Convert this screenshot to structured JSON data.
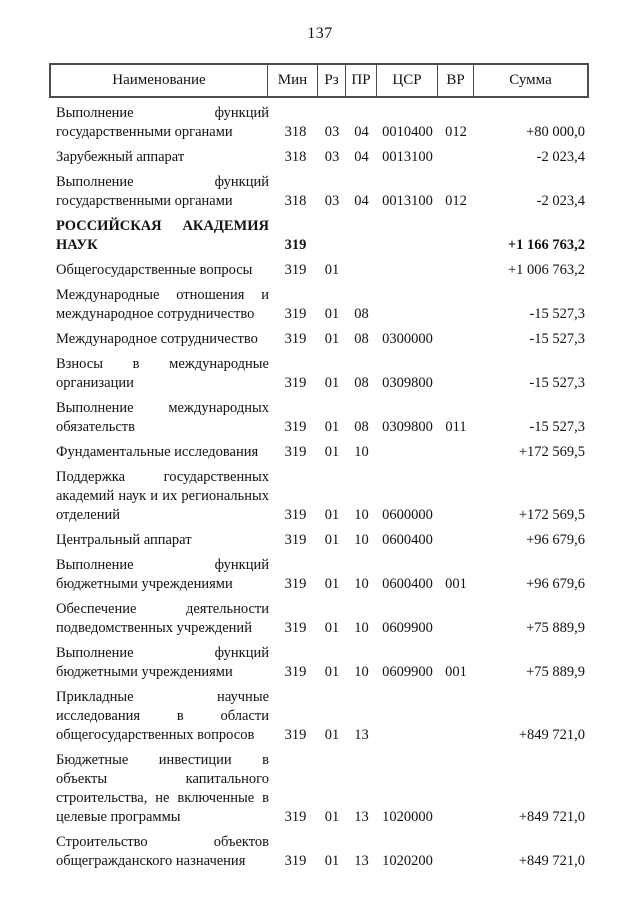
{
  "page": {
    "number": "137"
  },
  "colors": {
    "ink": "#121212",
    "table_border": "#4d4d4d",
    "paper": "#ffffff"
  },
  "table": {
    "headers": [
      "Наименование",
      "Мин",
      "Рз",
      "ПР",
      "ЦСР",
      "ВР",
      "Сумма"
    ],
    "rows": [
      {
        "name": "Выполнение функций государственными органами",
        "min": "318",
        "rz": "03",
        "pr": "04",
        "csr": "0010400",
        "vr": "012",
        "sum": "+80 000,0",
        "bold": false
      },
      {
        "name": "Зарубежный аппарат",
        "min": "318",
        "rz": "03",
        "pr": "04",
        "csr": "0013100",
        "vr": "",
        "sum": "-2 023,4",
        "bold": false
      },
      {
        "name": "Выполнение функций государственными органами",
        "min": "318",
        "rz": "03",
        "pr": "04",
        "csr": "0013100",
        "vr": "012",
        "sum": "-2 023,4",
        "bold": false
      },
      {
        "name": "РОССИЙСКАЯ АКАДЕМИЯ НАУК",
        "min": "319",
        "rz": "",
        "pr": "",
        "csr": "",
        "vr": "",
        "sum": "+1 166 763,2",
        "bold": true
      },
      {
        "name": "Общегосударственные вопросы",
        "min": "319",
        "rz": "01",
        "pr": "",
        "csr": "",
        "vr": "",
        "sum": "+1 006 763,2",
        "bold": false
      },
      {
        "name": "Международные отношения и международное сотрудничество",
        "min": "319",
        "rz": "01",
        "pr": "08",
        "csr": "",
        "vr": "",
        "sum": "-15 527,3",
        "bold": false
      },
      {
        "name": "Международное сотрудничество",
        "min": "319",
        "rz": "01",
        "pr": "08",
        "csr": "0300000",
        "vr": "",
        "sum": "-15 527,3",
        "bold": false
      },
      {
        "name": "Взносы в международные организации",
        "min": "319",
        "rz": "01",
        "pr": "08",
        "csr": "0309800",
        "vr": "",
        "sum": "-15 527,3",
        "bold": false
      },
      {
        "name": "Выполнение международных обязательств",
        "min": "319",
        "rz": "01",
        "pr": "08",
        "csr": "0309800",
        "vr": "011",
        "sum": "-15 527,3",
        "bold": false
      },
      {
        "name": "Фундаментальные исследования",
        "min": "319",
        "rz": "01",
        "pr": "10",
        "csr": "",
        "vr": "",
        "sum": "+172 569,5",
        "bold": false
      },
      {
        "name": "Поддержка государственных академий наук и их региональных отделений",
        "min": "319",
        "rz": "01",
        "pr": "10",
        "csr": "0600000",
        "vr": "",
        "sum": "+172 569,5",
        "bold": false
      },
      {
        "name": "Центральный аппарат",
        "min": "319",
        "rz": "01",
        "pr": "10",
        "csr": "0600400",
        "vr": "",
        "sum": "+96 679,6",
        "bold": false
      },
      {
        "name": "Выполнение функций бюджетными учреждениями",
        "min": "319",
        "rz": "01",
        "pr": "10",
        "csr": "0600400",
        "vr": "001",
        "sum": "+96 679,6",
        "bold": false
      },
      {
        "name": "Обеспечение деятельности подведомственных учреждений",
        "min": "319",
        "rz": "01",
        "pr": "10",
        "csr": "0609900",
        "vr": "",
        "sum": "+75 889,9",
        "bold": false
      },
      {
        "name": "Выполнение функций бюджетными учреждениями",
        "min": "319",
        "rz": "01",
        "pr": "10",
        "csr": "0609900",
        "vr": "001",
        "sum": "+75 889,9",
        "bold": false
      },
      {
        "name": "Прикладные научные исследования в области общегосударственных вопросов",
        "min": "319",
        "rz": "01",
        "pr": "13",
        "csr": "",
        "vr": "",
        "sum": "+849 721,0",
        "bold": false
      },
      {
        "name": "Бюджетные инвестиции в объекты капитального строительства, не включенные в целевые программы",
        "min": "319",
        "rz": "01",
        "pr": "13",
        "csr": "1020000",
        "vr": "",
        "sum": "+849 721,0",
        "bold": false
      },
      {
        "name": "Строительство объектов общегражданского назначения",
        "min": "319",
        "rz": "01",
        "pr": "13",
        "csr": "1020200",
        "vr": "",
        "sum": "+849 721,0",
        "bold": false
      }
    ]
  }
}
